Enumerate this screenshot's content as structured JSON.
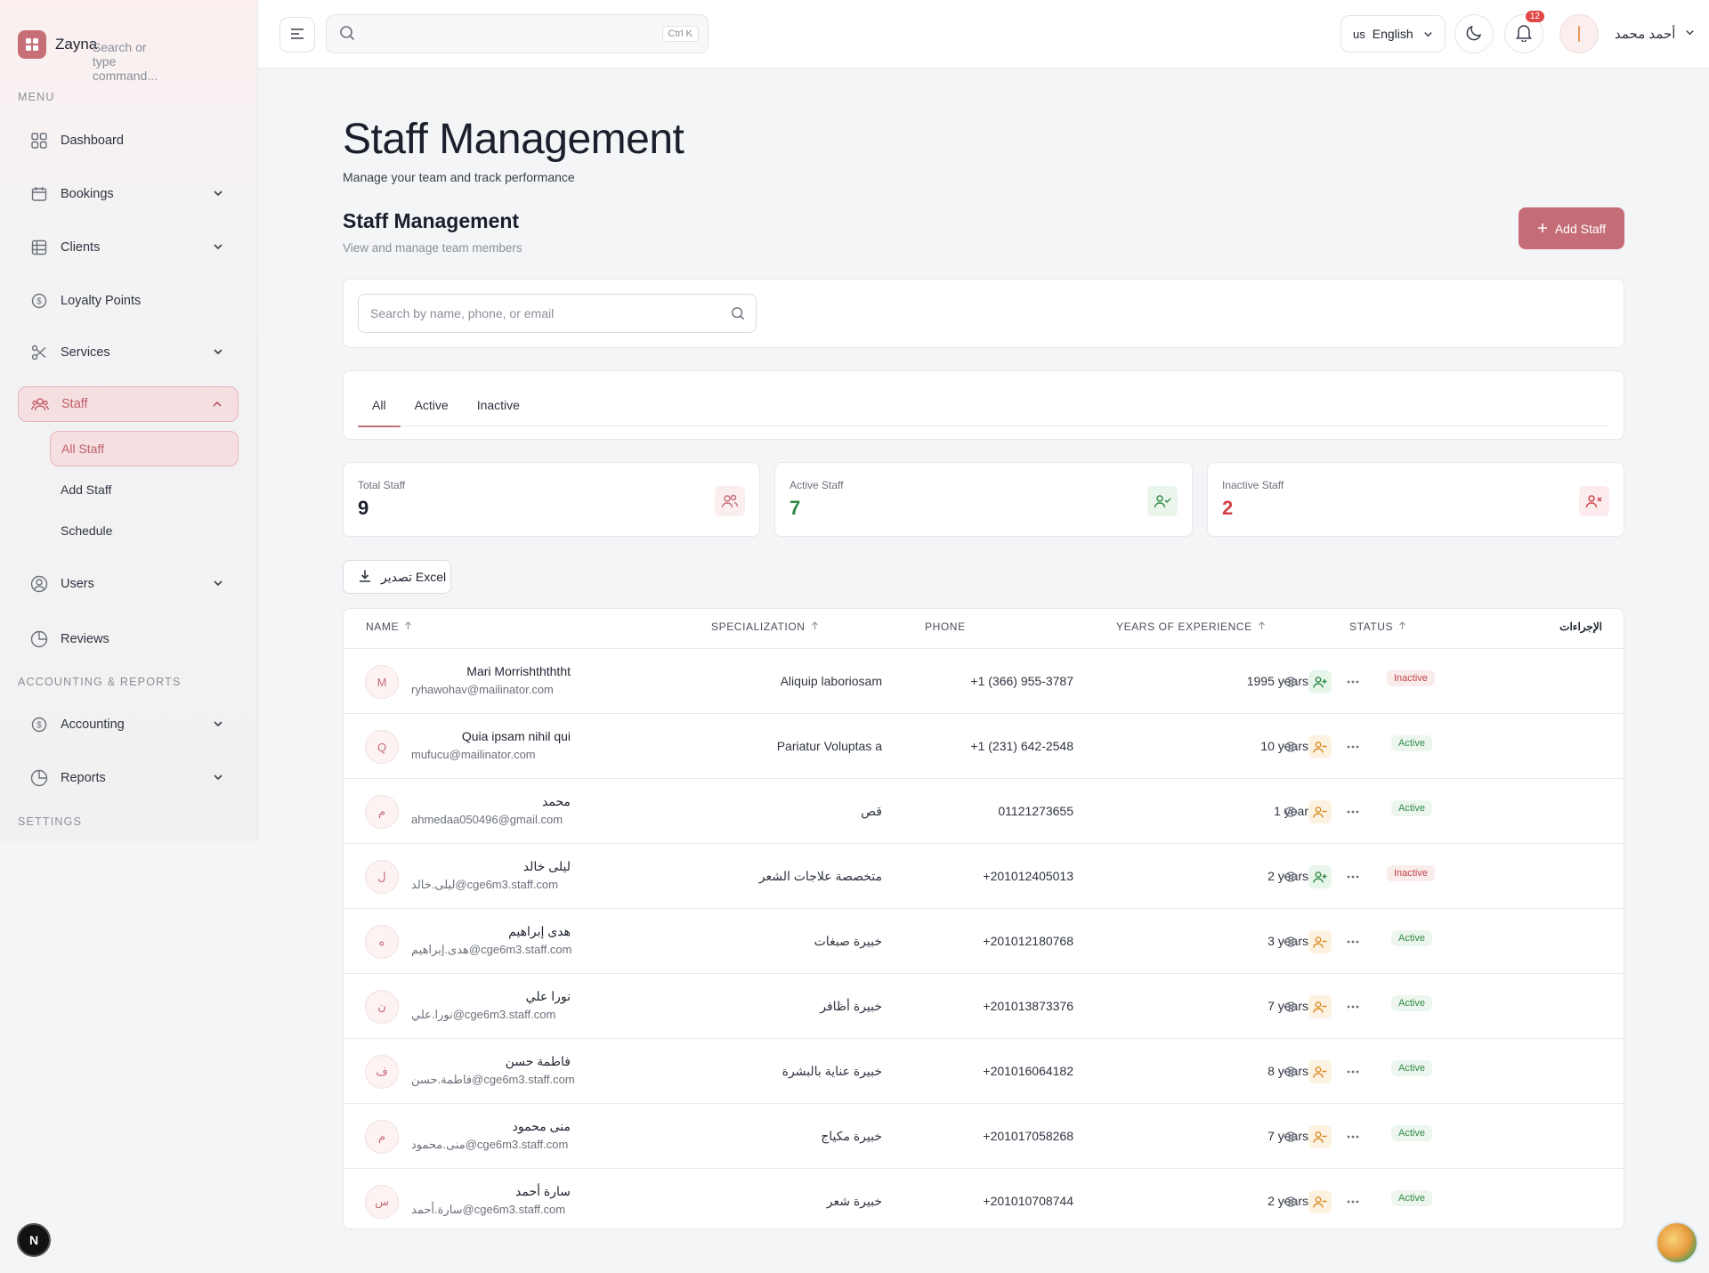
{
  "app": {
    "name": "Zayna"
  },
  "sidebar": {
    "menu_label": "MENU",
    "items": [
      {
        "label": "Dashboard"
      },
      {
        "label": "Bookings"
      },
      {
        "label": "Clients"
      },
      {
        "label": "Loyalty Points"
      },
      {
        "label": "Services"
      },
      {
        "label": "Staff"
      },
      {
        "label": "Users"
      },
      {
        "label": "Reviews"
      }
    ],
    "staff_sub": [
      "All Staff",
      "Add Staff",
      "Schedule"
    ],
    "accounting_label": "ACCOUNTING & REPORTS",
    "accounting_items": [
      {
        "label": "Accounting"
      },
      {
        "label": "Reports"
      }
    ],
    "settings_label": "SETTINGS"
  },
  "topbar": {
    "search_placeholder": "Search or type command...",
    "shortcut": "Ctrl K",
    "language_flag": "us",
    "language": "English",
    "notifications_count": "12",
    "user_name": "أحمد محمد"
  },
  "page": {
    "title": "Staff Management",
    "subtitle": "Manage your team and track performance",
    "section_title": "Staff Management",
    "section_subtitle": "View and manage team members",
    "add_button": "Add Staff",
    "search_placeholder": "Search by name, phone, or email",
    "tabs": [
      "All",
      "Active",
      "Inactive"
    ],
    "active_tab": "All",
    "export_label": "تصدير Excel"
  },
  "stats": [
    {
      "label": "Total Staff",
      "value": "9",
      "color": "#1a1f2b"
    },
    {
      "label": "Active Staff",
      "value": "7",
      "color": "#2f8a44"
    },
    {
      "label": "Inactive Staff",
      "value": "2",
      "color": "#d0404a"
    }
  ],
  "table": {
    "headers": {
      "name": "NAME",
      "specialization": "SPECIALIZATION",
      "phone": "PHONE",
      "experience": "YEARS OF EXPERIENCE",
      "status": "STATUS",
      "actions": "الإجراءات"
    },
    "rows": [
      {
        "initial": "M",
        "name": "Mari Morrishthththt",
        "email": "ryhawohav@mailinator.com",
        "specialization": "Aliquip laboriosam",
        "phone": "+1 (366) 955-3787",
        "experience": "1995 years",
        "status": "Inactive"
      },
      {
        "initial": "Q",
        "name": "Quia ipsam nihil qui",
        "email": "mufucu@mailinator.com",
        "specialization": "Pariatur Voluptas a",
        "phone": "+1 (231) 642-2548",
        "experience": "10 years",
        "status": "Active"
      },
      {
        "initial": "م",
        "name": "محمد",
        "email": "ahmedaa050496@gmail.com",
        "specialization": "قص",
        "phone": "01121273655",
        "experience": "1 year",
        "status": "Active"
      },
      {
        "initial": "ل",
        "name": "ليلى خالد",
        "email": "ليلى.خالد@cge6m3.staff.com",
        "specialization": "متخصصة علاجات الشعر",
        "phone": "+201012405013",
        "experience": "2 years",
        "status": "Inactive"
      },
      {
        "initial": "ه",
        "name": "هدى إبراهيم",
        "email": "هدى.إبراهيم@cge6m3.staff.com",
        "specialization": "خبيرة صبغات",
        "phone": "+201012180768",
        "experience": "3 years",
        "status": "Active"
      },
      {
        "initial": "ن",
        "name": "نورا علي",
        "email": "نورا.علي@cge6m3.staff.com",
        "specialization": "خبيرة أظافر",
        "phone": "+201013873376",
        "experience": "7 years",
        "status": "Active"
      },
      {
        "initial": "ف",
        "name": "فاطمة حسن",
        "email": "فاطمة.حسن@cge6m3.staff.com",
        "specialization": "خبيرة عناية بالبشرة",
        "phone": "+201016064182",
        "experience": "8 years",
        "status": "Active"
      },
      {
        "initial": "م",
        "name": "منى محمود",
        "email": "منى.محمود@cge6m3.staff.com",
        "specialization": "خبيرة مكياج",
        "phone": "+201017058268",
        "experience": "7 years",
        "status": "Active"
      },
      {
        "initial": "س",
        "name": "سارة أحمد",
        "email": "سارة.أحمد@cge6m3.staff.com",
        "specialization": "خبيرة شعر",
        "phone": "+201010708744",
        "experience": "2 years",
        "status": "Active"
      }
    ]
  },
  "colors": {
    "accent": "#c56d76",
    "active": "#2f8a44",
    "inactive": "#c0424a"
  }
}
